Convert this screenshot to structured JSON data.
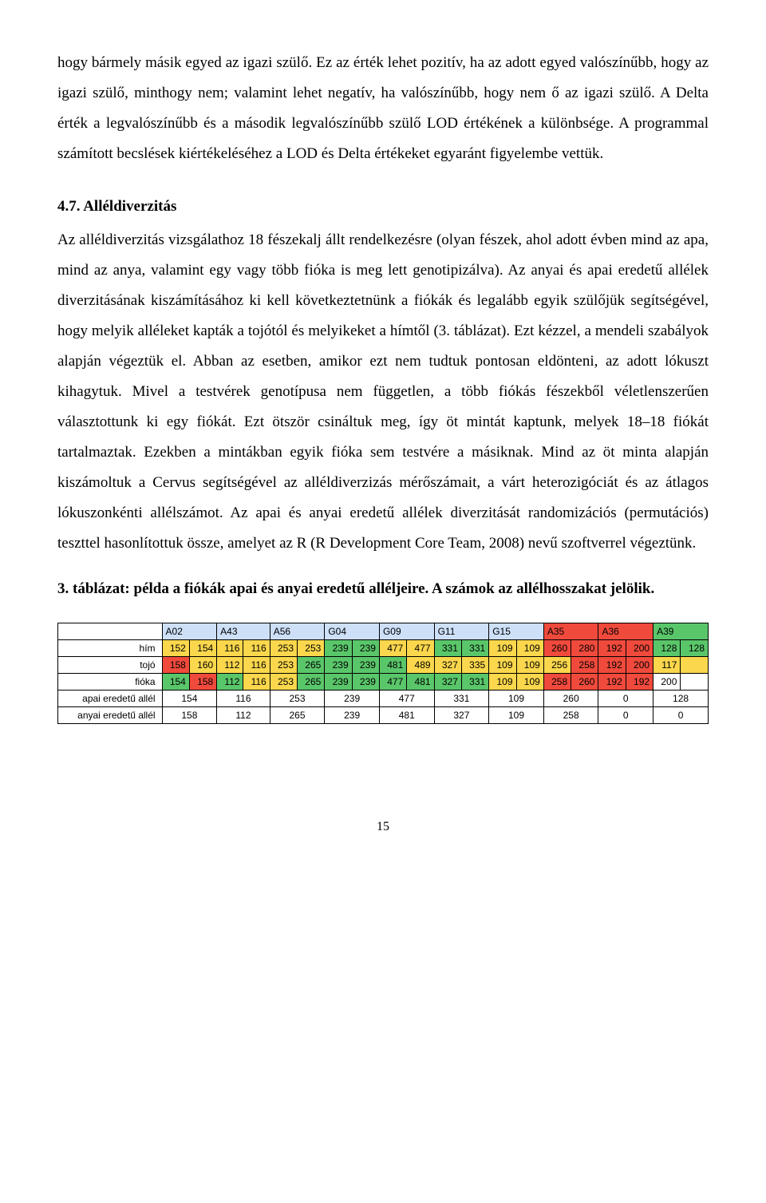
{
  "paragraph1": "hogy bármely másik egyed az igazi szülő. Ez az érték lehet pozitív, ha az adott egyed valószínűbb, hogy az igazi szülő, minthogy nem; valamint lehet negatív, ha valószínűbb, hogy nem ő az igazi szülő. A Delta érték a legvalószínűbb és a második legvalószínűbb szülő LOD értékének a különbsége. A programmal számított becslések kiértékeléséhez a LOD és Delta értékeket egyaránt figyelembe vettük.",
  "section_heading": "4.7. Alléldiverzitás",
  "paragraph2": "Az alléldiverzitás vizsgálathoz 18 fészekalj állt rendelkezésre (olyan fészek, ahol adott évben mind az apa, mind az anya, valamint egy vagy több fióka is meg lett genotipizálva). Az anyai és apai eredetű allélek diverzitásának kiszámításához ki kell következtetnünk a fiókák és legalább egyik szülőjük segítségével, hogy melyik alléleket kapták a tojótól és melyikeket a hímtől (3. táblázat). Ezt kézzel, a mendeli szabályok alapján végeztük el. Abban az esetben, amikor ezt nem tudtuk pontosan eldönteni, az adott lókuszt kihagytuk. Mivel a testvérek genotípusa nem független, a több fiókás fészekből véletlenszerűen választottunk ki egy fiókát. Ezt ötször csináltuk meg, így öt mintát kaptunk, melyek 18–18 fiókát tartalmaztak. Ezekben a mintákban egyik fióka sem testvére a másiknak. Mind az öt minta alapján kiszámoltuk a Cervus segítségével az alléldiverzizás mérőszámait, a várt heterozigóciát és az átlagos lókuszonkénti allélszámot. Az apai és anyai eredetű allélek diverzitását randomizációs (permutációs) teszttel hasonlítottuk össze, amelyet az R (R Development Core Team, 2008) nevű szoftverrel végeztünk.",
  "table_caption": "3. táblázat: példa a fiókák apai és anyai eredetű alléljeire. A számok az allélhosszakat jelölik.",
  "page_number": "15",
  "table": {
    "loci": [
      "A02",
      "A43",
      "A56",
      "G04",
      "G09",
      "G11",
      "G15",
      "A35",
      "A36",
      "A39"
    ],
    "header_colors": {
      "A02": "#cde0f8",
      "A43": "#cde0f8",
      "A56": "#cde0f8",
      "G04": "#cde0f8",
      "G09": "#cde0f8",
      "G11": "#cde0f8",
      "G15": "#cde0f8",
      "A35": "#f04a3c",
      "A36": "#f04a3c",
      "A39": "#5ac66a"
    },
    "row_labels": [
      "hím",
      "tojó",
      "fióka",
      "apai eredetű allél",
      "anyai eredetű allél"
    ],
    "colors": {
      "yellow": "#fad74c",
      "red": "#f04a3c",
      "green": "#5ac66a",
      "blue": "#cde0f8",
      "white": "#ffffff"
    },
    "rows": [
      {
        "label": "hím",
        "cells": [
          {
            "v": "152",
            "c": "#fad74c"
          },
          {
            "v": "154",
            "c": "#fad74c"
          },
          {
            "v": "116",
            "c": "#fad74c"
          },
          {
            "v": "116",
            "c": "#fad74c"
          },
          {
            "v": "253",
            "c": "#fad74c"
          },
          {
            "v": "253",
            "c": "#fad74c"
          },
          {
            "v": "239",
            "c": "#5ac66a"
          },
          {
            "v": "239",
            "c": "#5ac66a"
          },
          {
            "v": "477",
            "c": "#fad74c"
          },
          {
            "v": "477",
            "c": "#fad74c"
          },
          {
            "v": "331",
            "c": "#5ac66a"
          },
          {
            "v": "331",
            "c": "#5ac66a"
          },
          {
            "v": "109",
            "c": "#fad74c"
          },
          {
            "v": "109",
            "c": "#fad74c"
          },
          {
            "v": "260",
            "c": "#f04a3c"
          },
          {
            "v": "280",
            "c": "#f04a3c"
          },
          {
            "v": "192",
            "c": "#f04a3c"
          },
          {
            "v": "200",
            "c": "#f04a3c"
          },
          {
            "v": "128",
            "c": "#5ac66a"
          },
          {
            "v": "128",
            "c": "#5ac66a"
          }
        ]
      },
      {
        "label": "tojó",
        "cells": [
          {
            "v": "158",
            "c": "#f04a3c"
          },
          {
            "v": "160",
            "c": "#fad74c"
          },
          {
            "v": "112",
            "c": "#fad74c"
          },
          {
            "v": "116",
            "c": "#fad74c"
          },
          {
            "v": "253",
            "c": "#fad74c"
          },
          {
            "v": "265",
            "c": "#5ac66a"
          },
          {
            "v": "239",
            "c": "#5ac66a"
          },
          {
            "v": "239",
            "c": "#5ac66a"
          },
          {
            "v": "481",
            "c": "#5ac66a"
          },
          {
            "v": "489",
            "c": "#fad74c"
          },
          {
            "v": "327",
            "c": "#fad74c"
          },
          {
            "v": "335",
            "c": "#fad74c"
          },
          {
            "v": "109",
            "c": "#fad74c"
          },
          {
            "v": "109",
            "c": "#fad74c"
          },
          {
            "v": "256",
            "c": "#fad74c"
          },
          {
            "v": "258",
            "c": "#f04a3c"
          },
          {
            "v": "192",
            "c": "#f04a3c"
          },
          {
            "v": "200",
            "c": "#f04a3c"
          },
          {
            "v": "117",
            "c": "#fad74c"
          },
          {
            "v": "",
            "c": "#fad74c"
          }
        ]
      },
      {
        "label": "fióka",
        "cells": [
          {
            "v": "154",
            "c": "#5ac66a"
          },
          {
            "v": "158",
            "c": "#f04a3c"
          },
          {
            "v": "112",
            "c": "#5ac66a"
          },
          {
            "v": "116",
            "c": "#fad74c"
          },
          {
            "v": "253",
            "c": "#fad74c"
          },
          {
            "v": "265",
            "c": "#5ac66a"
          },
          {
            "v": "239",
            "c": "#5ac66a"
          },
          {
            "v": "239",
            "c": "#5ac66a"
          },
          {
            "v": "477",
            "c": "#5ac66a"
          },
          {
            "v": "481",
            "c": "#5ac66a"
          },
          {
            "v": "327",
            "c": "#5ac66a"
          },
          {
            "v": "331",
            "c": "#5ac66a"
          },
          {
            "v": "109",
            "c": "#fad74c"
          },
          {
            "v": "109",
            "c": "#fad74c"
          },
          {
            "v": "258",
            "c": "#f04a3c"
          },
          {
            "v": "260",
            "c": "#f04a3c"
          },
          {
            "v": "192",
            "c": "#f04a3c"
          },
          {
            "v": "192",
            "c": "#f04a3c"
          },
          {
            "v": "200",
            "c": "#ffffff"
          },
          {
            "v": "",
            "c": "#ffffff"
          }
        ]
      },
      {
        "label": "apai eredetű allél",
        "cells": [
          {
            "v": "154",
            "span": 2
          },
          {
            "v": "116",
            "span": 2
          },
          {
            "v": "253",
            "span": 2
          },
          {
            "v": "239",
            "span": 2
          },
          {
            "v": "477",
            "span": 2
          },
          {
            "v": "331",
            "span": 2
          },
          {
            "v": "109",
            "span": 2
          },
          {
            "v": "260",
            "span": 2
          },
          {
            "v": "0",
            "span": 2
          },
          {
            "v": "128",
            "span": 2
          }
        ]
      },
      {
        "label": "anyai eredetű allél",
        "cells": [
          {
            "v": "158",
            "span": 2
          },
          {
            "v": "112",
            "span": 2
          },
          {
            "v": "265",
            "span": 2
          },
          {
            "v": "239",
            "span": 2
          },
          {
            "v": "481",
            "span": 2
          },
          {
            "v": "327",
            "span": 2
          },
          {
            "v": "109",
            "span": 2
          },
          {
            "v": "258",
            "span": 2
          },
          {
            "v": "0",
            "span": 2
          },
          {
            "v": "0",
            "span": 2
          }
        ]
      }
    ]
  }
}
